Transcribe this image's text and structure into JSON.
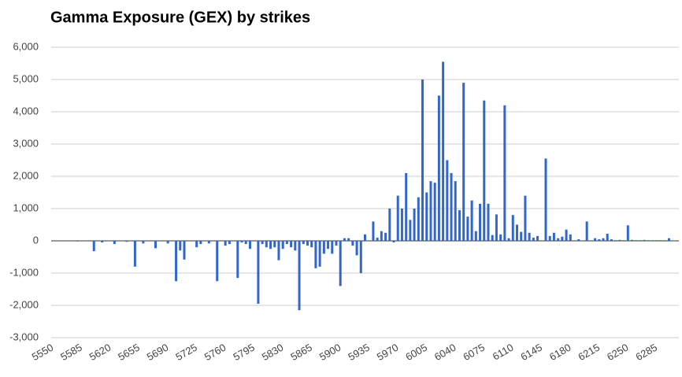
{
  "chart_data": {
    "type": "bar",
    "title": "Gamma Exposure (GEX) by strikes",
    "color": "#3366cc",
    "grid": true,
    "x": [
      5550,
      5555,
      5560,
      5565,
      5570,
      5575,
      5580,
      5585,
      5590,
      5595,
      5600,
      5605,
      5610,
      5615,
      5620,
      5625,
      5630,
      5635,
      5640,
      5645,
      5650,
      5655,
      5660,
      5665,
      5670,
      5675,
      5680,
      5685,
      5690,
      5695,
      5700,
      5705,
      5710,
      5715,
      5720,
      5725,
      5730,
      5735,
      5740,
      5745,
      5750,
      5755,
      5760,
      5765,
      5770,
      5775,
      5780,
      5785,
      5790,
      5795,
      5800,
      5805,
      5810,
      5815,
      5820,
      5825,
      5830,
      5835,
      5840,
      5845,
      5850,
      5855,
      5860,
      5865,
      5870,
      5875,
      5880,
      5885,
      5890,
      5895,
      5900,
      5905,
      5910,
      5915,
      5920,
      5925,
      5930,
      5935,
      5940,
      5945,
      5950,
      5955,
      5960,
      5965,
      5970,
      5975,
      5980,
      5985,
      5990,
      5995,
      6000,
      6005,
      6010,
      6015,
      6020,
      6025,
      6030,
      6035,
      6040,
      6045,
      6050,
      6055,
      6060,
      6065,
      6070,
      6075,
      6080,
      6085,
      6090,
      6095,
      6100,
      6105,
      6110,
      6115,
      6120,
      6125,
      6130,
      6135,
      6140,
      6145,
      6150,
      6155,
      6160,
      6165,
      6170,
      6175,
      6180,
      6185,
      6190,
      6195,
      6200,
      6205,
      6210,
      6215,
      6220,
      6225,
      6230,
      6235,
      6240,
      6245,
      6250,
      6255,
      6260,
      6265,
      6270,
      6275,
      6280,
      6285,
      6290,
      6295,
      6300,
      6305
    ],
    "values": [
      0,
      0,
      0,
      0,
      0,
      0,
      -20,
      0,
      0,
      0,
      -320,
      0,
      -50,
      0,
      0,
      -100,
      0,
      0,
      -30,
      0,
      -800,
      0,
      -80,
      0,
      0,
      -230,
      0,
      0,
      -80,
      0,
      -1250,
      -300,
      -580,
      0,
      0,
      -200,
      -100,
      0,
      -80,
      0,
      -1250,
      0,
      -150,
      -100,
      0,
      -1150,
      -50,
      -100,
      -250,
      0,
      -1950,
      -100,
      -200,
      -250,
      -200,
      -600,
      -250,
      -100,
      -200,
      -300,
      -2150,
      -100,
      -150,
      -200,
      -850,
      -800,
      -400,
      -250,
      -400,
      -150,
      -1400,
      80,
      80,
      -150,
      -450,
      -1000,
      200,
      0,
      600,
      100,
      300,
      250,
      1000,
      -50,
      1400,
      1000,
      2100,
      650,
      1000,
      1350,
      5000,
      1500,
      1850,
      1800,
      4500,
      5550,
      2500,
      2100,
      1850,
      950,
      4900,
      750,
      1250,
      300,
      1150,
      4350,
      1150,
      180,
      820,
      200,
      4200,
      80,
      800,
      500,
      280,
      1400,
      250,
      100,
      150,
      0,
      2550,
      150,
      250,
      80,
      130,
      350,
      200,
      0,
      50,
      0,
      600,
      0,
      80,
      50,
      80,
      220,
      50,
      20,
      30,
      20,
      480,
      30,
      20,
      20,
      30,
      20,
      20,
      20,
      20,
      20,
      80,
      0
    ],
    "xlim": [
      5548,
      6312
    ],
    "xticks": [
      5550,
      5585,
      5620,
      5655,
      5690,
      5725,
      5760,
      5795,
      5830,
      5865,
      5900,
      5935,
      5970,
      6005,
      6040,
      6075,
      6110,
      6145,
      6180,
      6215,
      6250,
      6285
    ],
    "ylim": [
      -3000,
      6000
    ],
    "yticks": [
      {
        "value": -3000,
        "label": "-3,000"
      },
      {
        "value": -2000,
        "label": "-2,000"
      },
      {
        "value": -1000,
        "label": "-1,000"
      },
      0,
      {
        "value": 1000,
        "label": "1,000"
      },
      {
        "value": 2000,
        "label": "2,000"
      },
      {
        "value": 3000,
        "label": "3,000"
      },
      {
        "value": 4000,
        "label": "4,000"
      },
      {
        "value": 5000,
        "label": "5,000"
      },
      {
        "value": 6000,
        "label": "6,000"
      }
    ]
  }
}
